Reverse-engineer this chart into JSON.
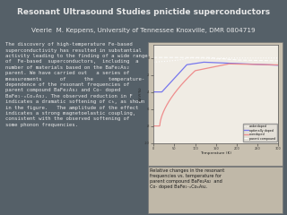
{
  "title_line1": "Resonant Ultrasound Studies pnictide superconductors",
  "title_line2": "Veerie  M. Keppens, University of Tennessee Knoxville, DMR 0804719",
  "bg_color": "#556068",
  "header_bg": "#4a5560",
  "text_color": "#e8e8e8",
  "body_text": "The discovery of high-temperature Fe-based\nsuperconductivity has resulted in substantial\nactivity leading to the finding of a wide range\nof  Fe-based  superconductors,  including  a\nnumber of materials based on the BaFe₂As₂\nparent. We have carried out   a series of\nmeasurements      of      the     temperature-\ndependence of the resonant frequencies of\nparent compound BaFe₂As₂ and Co- doped\nBaFe₁₋ₓCoₓAs₂. The observed reduction in F\nindicates a dramatic softening of cₕ, as shown\nin the figure.   The amplitude of the effect\nindicates a strong magnetoelastic coupling,\nconsistent with the observed softening of\nsome phonon frequencies.",
  "caption_text": "Relative changes in the resonant\nfrequencies vs. temperature for\nparent compound BaFe₂As₂  and\nCo- doped BaFe₁₋ₓCoₓAs₂.",
  "fig_bg": "#c8c0b0",
  "plot_bg": "#f0ece4",
  "caption_bg": "#c0b8a8"
}
